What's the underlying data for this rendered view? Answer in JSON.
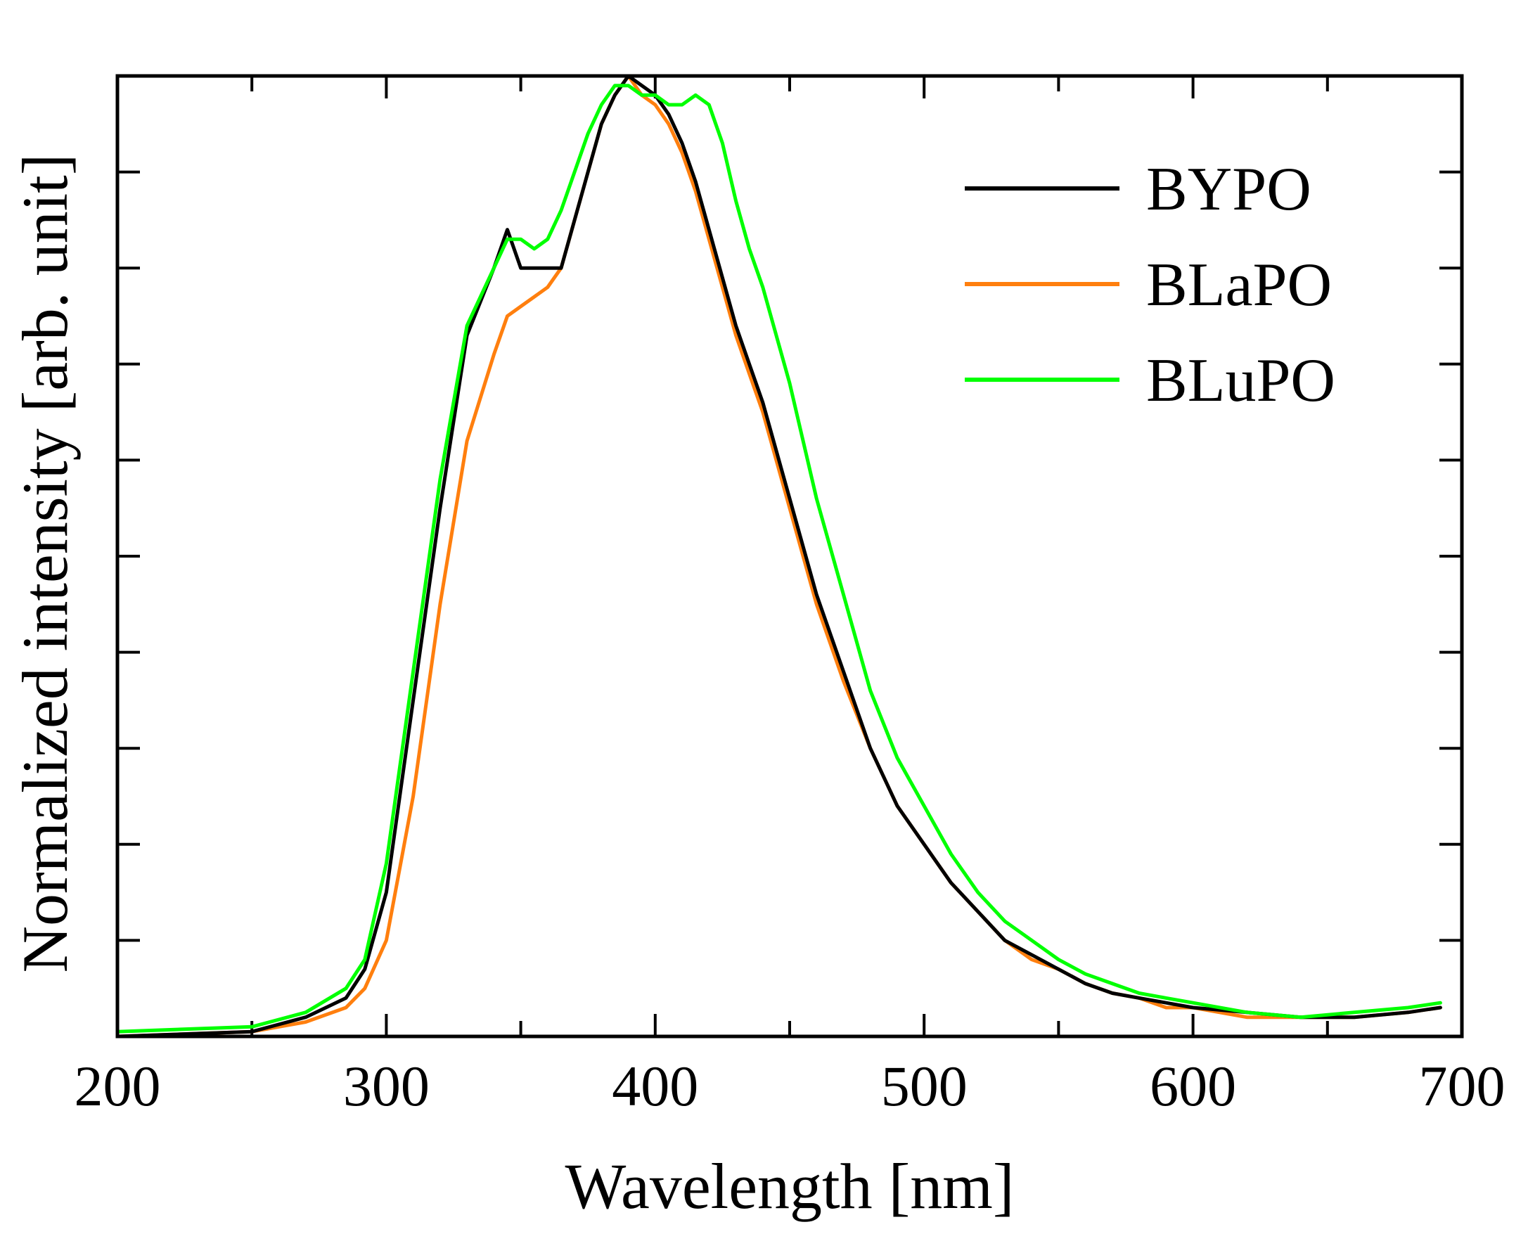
{
  "chart_data": {
    "type": "line",
    "title": "",
    "xlabel": "Wavelength [nm]",
    "ylabel": "Normalized intensity [arb. unit]",
    "xlim": [
      200,
      700
    ],
    "ylim": [
      0,
      1.0
    ],
    "x_ticks": [
      "200",
      "300",
      "400",
      "500",
      "600",
      "700"
    ],
    "y_ticks_labeled": false,
    "grid": false,
    "legend_position": "top-right",
    "series": [
      {
        "name": "BYPO",
        "color": "#000000",
        "x": [
          200,
          250,
          270,
          285,
          292,
          300,
          310,
          320,
          330,
          340,
          345,
          350,
          355,
          360,
          365,
          370,
          375,
          380,
          385,
          390,
          395,
          400,
          405,
          410,
          415,
          420,
          425,
          430,
          435,
          440,
          450,
          460,
          470,
          480,
          490,
          500,
          510,
          520,
          530,
          540,
          550,
          560,
          570,
          580,
          590,
          600,
          620,
          640,
          660,
          680,
          692
        ],
        "values": [
          0.0,
          0.005,
          0.02,
          0.04,
          0.07,
          0.15,
          0.35,
          0.55,
          0.73,
          0.8,
          0.84,
          0.8,
          0.8,
          0.8,
          0.8,
          0.85,
          0.9,
          0.95,
          0.98,
          1.0,
          0.99,
          0.98,
          0.96,
          0.93,
          0.89,
          0.84,
          0.79,
          0.74,
          0.7,
          0.66,
          0.56,
          0.46,
          0.38,
          0.3,
          0.24,
          0.2,
          0.16,
          0.13,
          0.1,
          0.085,
          0.07,
          0.055,
          0.045,
          0.04,
          0.035,
          0.03,
          0.025,
          0.02,
          0.02,
          0.025,
          0.03
        ]
      },
      {
        "name": "BLaPO",
        "color": "#ff7f0e",
        "x": [
          200,
          250,
          270,
          285,
          292,
          300,
          310,
          320,
          330,
          340,
          345,
          350,
          355,
          360,
          365,
          370,
          375,
          380,
          385,
          390,
          395,
          400,
          405,
          410,
          415,
          420,
          425,
          430,
          435,
          440,
          450,
          460,
          470,
          480,
          490,
          500,
          510,
          520,
          530,
          540,
          550,
          560,
          570,
          580,
          590,
          600,
          620,
          640,
          660,
          680,
          692
        ],
        "values": [
          0.0,
          0.005,
          0.015,
          0.03,
          0.05,
          0.1,
          0.25,
          0.45,
          0.62,
          0.71,
          0.75,
          0.76,
          0.77,
          0.78,
          0.8,
          0.85,
          0.9,
          0.95,
          0.98,
          1.0,
          0.98,
          0.97,
          0.95,
          0.92,
          0.88,
          0.83,
          0.78,
          0.73,
          0.69,
          0.65,
          0.55,
          0.45,
          0.37,
          0.3,
          0.24,
          0.2,
          0.16,
          0.13,
          0.1,
          0.08,
          0.07,
          0.055,
          0.045,
          0.04,
          0.03,
          0.03,
          0.02,
          0.02,
          0.02,
          0.025,
          0.03
        ]
      },
      {
        "name": "BLuPO",
        "color": "#00ff00",
        "x": [
          200,
          250,
          270,
          285,
          292,
          300,
          310,
          320,
          330,
          340,
          345,
          350,
          355,
          360,
          365,
          370,
          375,
          380,
          385,
          390,
          395,
          400,
          405,
          410,
          415,
          420,
          425,
          430,
          435,
          440,
          450,
          460,
          470,
          480,
          490,
          500,
          510,
          520,
          530,
          540,
          550,
          560,
          570,
          580,
          590,
          600,
          620,
          640,
          660,
          680,
          692
        ],
        "values": [
          0.005,
          0.01,
          0.025,
          0.05,
          0.08,
          0.18,
          0.38,
          0.58,
          0.74,
          0.8,
          0.83,
          0.83,
          0.82,
          0.83,
          0.86,
          0.9,
          0.94,
          0.97,
          0.99,
          0.99,
          0.98,
          0.98,
          0.97,
          0.97,
          0.98,
          0.97,
          0.93,
          0.87,
          0.82,
          0.78,
          0.68,
          0.56,
          0.46,
          0.36,
          0.29,
          0.24,
          0.19,
          0.15,
          0.12,
          0.1,
          0.08,
          0.065,
          0.055,
          0.045,
          0.04,
          0.035,
          0.025,
          0.02,
          0.025,
          0.03,
          0.035
        ]
      }
    ]
  }
}
